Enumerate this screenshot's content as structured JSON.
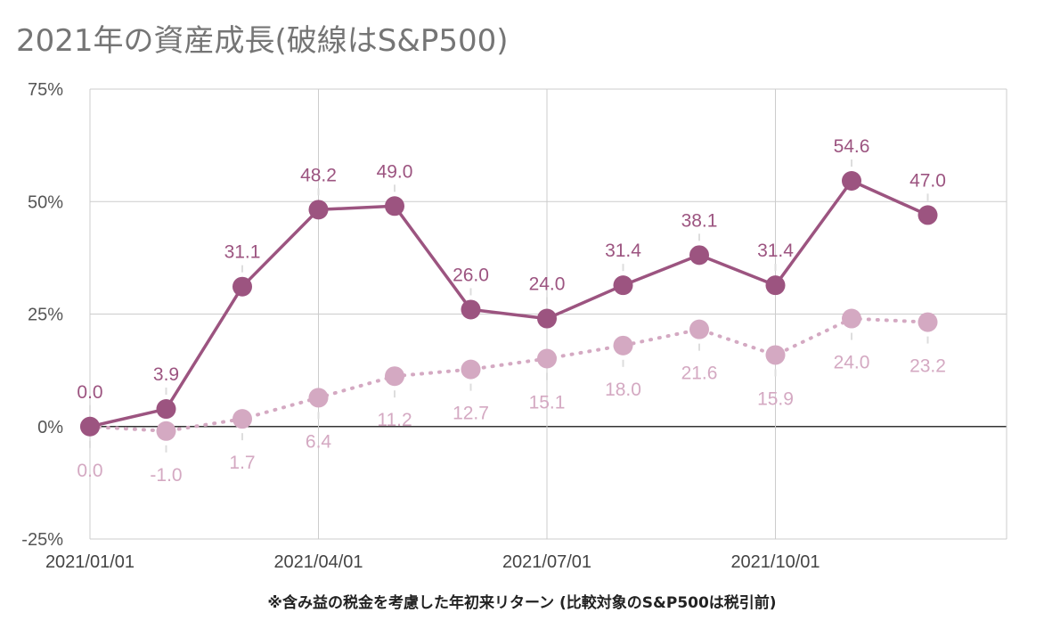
{
  "chart_data": {
    "type": "line",
    "title": "2021年の資産成長(破線はS&P500)",
    "footnote": "※含み益の税金を考慮した年初来リターン (比較対象のS&P500は税引前)",
    "x": [
      "2021/01/01",
      "2021/02/01",
      "2021/03/01",
      "2021/04/01",
      "2021/05/01",
      "2021/06/01",
      "2021/07/01",
      "2021/08/01",
      "2021/09/01",
      "2021/10/01",
      "2021/11/01",
      "2021/12/01"
    ],
    "x_tick_labels": [
      "2021/01/01",
      "2021/04/01",
      "2021/07/01",
      "2021/10/01"
    ],
    "y_tick_labels": [
      "75%",
      "50%",
      "25%",
      "0%",
      "-25%"
    ],
    "ylim": [
      -25,
      75
    ],
    "series": [
      {
        "style": "solid",
        "color": "#9c5480",
        "values": [
          0.0,
          3.9,
          31.1,
          48.2,
          49.0,
          26.0,
          24.0,
          31.4,
          38.1,
          31.4,
          54.6,
          47.0
        ],
        "labels": [
          "0.0",
          "3.9",
          "31.1",
          "48.2",
          "49.0",
          "26.0",
          "24.0",
          "31.4",
          "38.1",
          "31.4",
          "54.6",
          "47.0"
        ]
      },
      {
        "style": "dotted",
        "color": "#d4a9c2",
        "values": [
          0.0,
          -1.0,
          1.7,
          6.4,
          11.2,
          12.7,
          15.1,
          18.0,
          21.6,
          15.9,
          24.0,
          23.2
        ],
        "labels": [
          "0.0",
          "-1.0",
          "1.7",
          "6.4",
          "11.2",
          "12.7",
          "15.1",
          "18.0",
          "21.6",
          "15.9",
          "24.0",
          "23.2"
        ]
      }
    ],
    "grid": true
  }
}
